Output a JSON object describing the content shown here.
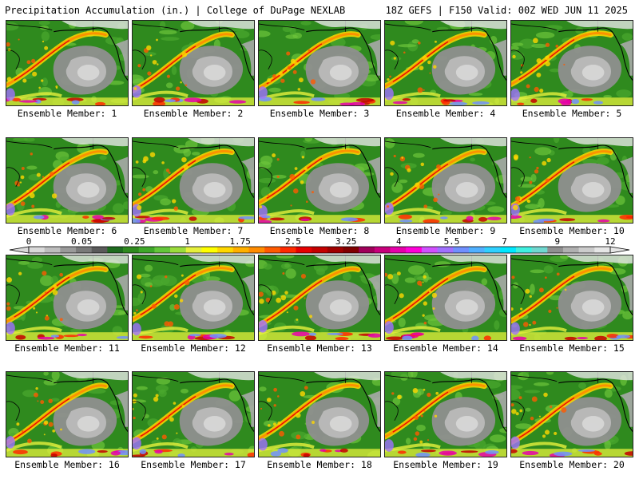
{
  "header": {
    "left": "Precipitation Accumulation (in.) | College of DuPage NEXLAB",
    "right": "18Z GEFS | F150 Valid: 00Z WED JUN 11 2025"
  },
  "colorbar": {
    "labels": [
      "0",
      "0.05",
      "0.25",
      "1",
      "1.75",
      "2.5",
      "3.25",
      "4",
      "5.5",
      "7",
      "9",
      "12"
    ],
    "colors": [
      "#d9d9d9",
      "#bdbdbd",
      "#9a9a9a",
      "#7a7a7a",
      "#5a5a5a",
      "#1e6b1e",
      "#2f8a1e",
      "#3fa82a",
      "#63c63a",
      "#9bdc3c",
      "#e6f03c",
      "#ffff00",
      "#ffd700",
      "#ffb000",
      "#ff8c00",
      "#ff5a00",
      "#ff2a00",
      "#e60000",
      "#c40000",
      "#a00000",
      "#800000",
      "#a0005a",
      "#c8007c",
      "#e600aa",
      "#ff00d8",
      "#d050ff",
      "#a070ff",
      "#7090ff",
      "#50b0ff",
      "#30d0ff",
      "#00e8ff",
      "#40f0e0",
      "#70d8d0",
      "#909090",
      "#b0b0b0",
      "#cccccc",
      "#e6e6e6"
    ]
  },
  "members": [
    {
      "label": "Ensemble Member: 1"
    },
    {
      "label": "Ensemble Member: 2"
    },
    {
      "label": "Ensemble Member: 3"
    },
    {
      "label": "Ensemble Member: 4"
    },
    {
      "label": "Ensemble Member: 5"
    },
    {
      "label": "Ensemble Member: 6"
    },
    {
      "label": "Ensemble Member: 7"
    },
    {
      "label": "Ensemble Member: 8"
    },
    {
      "label": "Ensemble Member: 9"
    },
    {
      "label": "Ensemble Member: 10"
    },
    {
      "label": "Ensemble Member: 11"
    },
    {
      "label": "Ensemble Member: 12"
    },
    {
      "label": "Ensemble Member: 13"
    },
    {
      "label": "Ensemble Member: 14"
    },
    {
      "label": "Ensemble Member: 15"
    },
    {
      "label": "Ensemble Member: 16"
    },
    {
      "label": "Ensemble Member: 17"
    },
    {
      "label": "Ensemble Member: 18"
    },
    {
      "label": "Ensemble Member: 19"
    },
    {
      "label": "Ensemble Member: 20"
    }
  ]
}
